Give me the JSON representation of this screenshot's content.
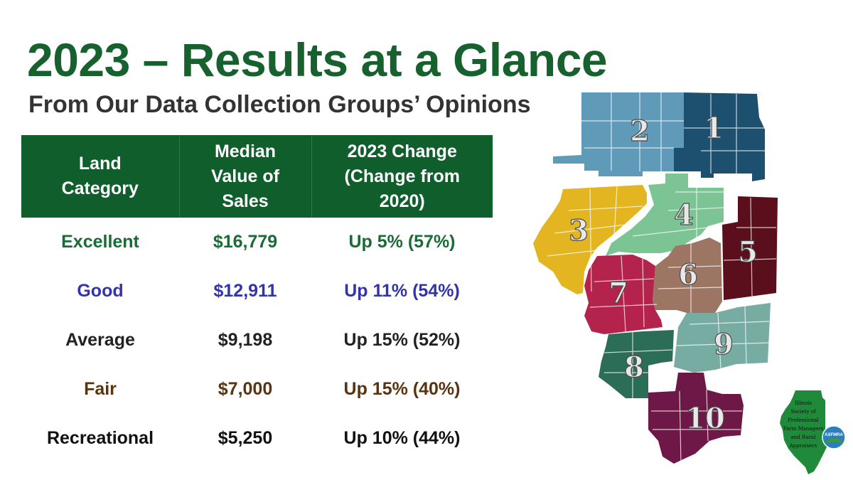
{
  "title": "2023 – Results at a Glance",
  "subtitle": "From Our Data Collection Groups’ Opinions",
  "table": {
    "headers": [
      [
        "Land",
        "Category"
      ],
      [
        "Median",
        "Value of",
        "Sales"
      ],
      [
        "2023 Change",
        "(Change from",
        "2020)"
      ]
    ],
    "rows": [
      {
        "category": "Excellent",
        "median": "$16,779",
        "change": "Up 5% (57%)",
        "color": "#1a6b35"
      },
      {
        "category": "Good",
        "median": "$12,911",
        "change": "Up 11% (54%)",
        "color": "#3333aa"
      },
      {
        "category": "Average",
        "median": "$9,198",
        "change": "Up 15% (52%)",
        "color": "#222222"
      },
      {
        "category": "Fair",
        "median": "$7,000",
        "change": "Up 15% (40%)",
        "color": "#5a3410"
      },
      {
        "category": "Recreational",
        "median": "$5,250",
        "change": "Up 10% (44%)",
        "color": "#111111"
      }
    ]
  },
  "map": {
    "regions": [
      {
        "label": "1",
        "color": "#1d4f6e"
      },
      {
        "label": "2",
        "color": "#5f9ab8"
      },
      {
        "label": "3",
        "color": "#e2b521"
      },
      {
        "label": "4",
        "color": "#7cc493"
      },
      {
        "label": "5",
        "color": "#5b0f1c"
      },
      {
        "label": "6",
        "color": "#9c7563"
      },
      {
        "label": "7",
        "color": "#b3234c"
      },
      {
        "label": "8",
        "color": "#2c6d58"
      },
      {
        "label": "9",
        "color": "#77aca3"
      },
      {
        "label": "10",
        "color": "#6e1848"
      }
    ]
  },
  "logo": {
    "lines": [
      "Illinois",
      "Society of",
      "Professional",
      "Farm Managers",
      "and Rural",
      "Appraisers"
    ],
    "badge": "ASFMRA",
    "color": "#1e8a3a"
  },
  "colors": {
    "title": "#17612f",
    "header_bg": "#115e2d"
  }
}
